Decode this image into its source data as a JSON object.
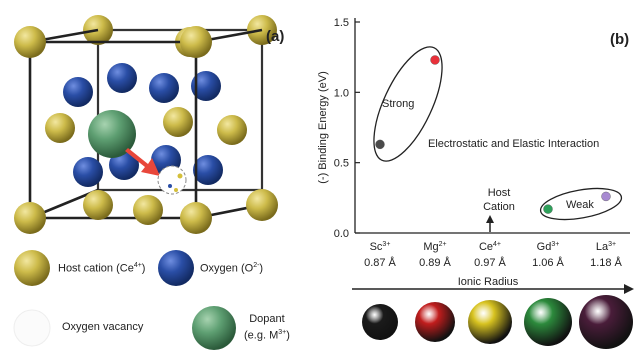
{
  "figure": {
    "panel_a": {
      "label": "(a)",
      "legend": [
        {
          "name": "Host cation",
          "sup": "4+",
          "text_pre": "Host cation (Ce",
          "text_post": ")"
        },
        {
          "name": "Oxygen",
          "text_pre": "Oxygen (O",
          "sup": "2-",
          "text_post": ")"
        },
        {
          "name": "Oxygen vacancy",
          "text_pre": "Oxygen vacancy"
        },
        {
          "name": "Dopant",
          "line1": "Dopant",
          "line2_pre": "(e.g. M",
          "sup": "3+",
          "line2_post": ")"
        }
      ],
      "colors": {
        "host_cation": "#c9b845",
        "oxygen": "#26489a",
        "dopant": "#5e9f72",
        "arrow": "#e8473b",
        "edge": "#222222"
      }
    },
    "panel_b": {
      "label": "(b)",
      "annotations": {
        "strong": "Strong",
        "weak": "Weak",
        "interaction": "Electrostatic and Elastic Interaction",
        "host_line1": "Host",
        "host_line2": "Cation"
      },
      "bottom_sphere_colors": [
        "#1b1b1b",
        "#c11d1d",
        "#d8c320",
        "#2c8a3c",
        "#4a1d3a"
      ]
    }
  },
  "chart_data": {
    "type": "scatter",
    "title": "",
    "xlabel": "Ionic Radius",
    "ylabel": "(-) Binding Energy (eV)",
    "ylim": [
      0.0,
      1.5
    ],
    "yticks": [
      "0.0",
      "0.5",
      "1.0",
      "1.5"
    ],
    "categories": [
      {
        "ion": "Sc",
        "sup": "3+",
        "radius": "0.87 Å"
      },
      {
        "ion": "Mg",
        "sup": "2+",
        "radius": "0.89 Å"
      },
      {
        "ion": "Ce",
        "sup": "4+",
        "radius": "0.97 Å"
      },
      {
        "ion": "Gd",
        "sup": "3+",
        "radius": "1.06 Å"
      },
      {
        "ion": "La",
        "sup": "3+",
        "radius": "1.18 Å"
      }
    ],
    "points": [
      {
        "category": "Sc",
        "value": 0.63,
        "color": "#4a4a4a"
      },
      {
        "category": "Mg",
        "value": 1.23,
        "color": "#e8303a"
      },
      {
        "category": "Gd",
        "value": 0.17,
        "color": "#2ea05a"
      },
      {
        "category": "La",
        "value": 0.26,
        "color": "#a78ad1"
      }
    ],
    "grid": false,
    "legend": "none"
  }
}
